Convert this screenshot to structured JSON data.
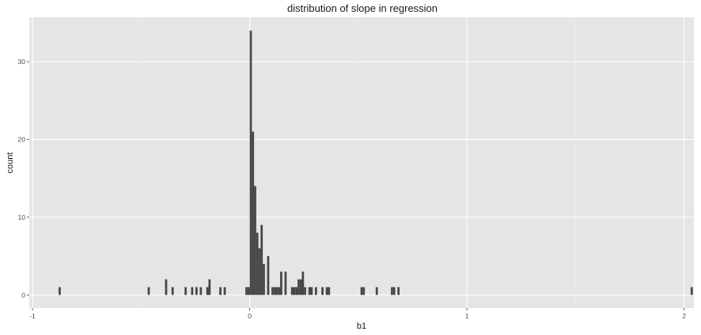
{
  "chart_data": {
    "type": "bar",
    "title": "distribution of slope in regression",
    "xlabel": "b1",
    "ylabel": "count",
    "xlim": [
      -1.015,
      2.045
    ],
    "ylim": [
      -1.7,
      35.7
    ],
    "x_ticks": [
      -1,
      0,
      1,
      2
    ],
    "x_tick_labels": [
      "-1",
      "0",
      "1",
      "2"
    ],
    "y_ticks": [
      0,
      10,
      20,
      30
    ],
    "y_tick_labels": [
      "0",
      "10",
      "20",
      "30"
    ],
    "grid": true,
    "legend": "none",
    "bin_width": 0.01,
    "bins": [
      {
        "x": -0.875,
        "count": 1
      },
      {
        "x": -0.465,
        "count": 1
      },
      {
        "x": -0.385,
        "count": 2
      },
      {
        "x": -0.355,
        "count": 1
      },
      {
        "x": -0.295,
        "count": 1
      },
      {
        "x": -0.265,
        "count": 1
      },
      {
        "x": -0.245,
        "count": 1
      },
      {
        "x": -0.225,
        "count": 1
      },
      {
        "x": -0.195,
        "count": 1
      },
      {
        "x": -0.185,
        "count": 2
      },
      {
        "x": -0.135,
        "count": 1
      },
      {
        "x": -0.115,
        "count": 1
      },
      {
        "x": -0.015,
        "count": 1
      },
      {
        "x": -0.005,
        "count": 1
      },
      {
        "x": 0.005,
        "count": 34
      },
      {
        "x": 0.015,
        "count": 21
      },
      {
        "x": 0.025,
        "count": 14
      },
      {
        "x": 0.035,
        "count": 8
      },
      {
        "x": 0.045,
        "count": 6
      },
      {
        "x": 0.055,
        "count": 9
      },
      {
        "x": 0.065,
        "count": 4
      },
      {
        "x": 0.085,
        "count": 5
      },
      {
        "x": 0.105,
        "count": 1
      },
      {
        "x": 0.115,
        "count": 1
      },
      {
        "x": 0.125,
        "count": 1
      },
      {
        "x": 0.135,
        "count": 1
      },
      {
        "x": 0.145,
        "count": 3
      },
      {
        "x": 0.165,
        "count": 3
      },
      {
        "x": 0.195,
        "count": 1
      },
      {
        "x": 0.205,
        "count": 1
      },
      {
        "x": 0.215,
        "count": 1
      },
      {
        "x": 0.225,
        "count": 2
      },
      {
        "x": 0.235,
        "count": 2
      },
      {
        "x": 0.245,
        "count": 3
      },
      {
        "x": 0.255,
        "count": 1
      },
      {
        "x": 0.275,
        "count": 1
      },
      {
        "x": 0.285,
        "count": 1
      },
      {
        "x": 0.305,
        "count": 1
      },
      {
        "x": 0.335,
        "count": 1
      },
      {
        "x": 0.355,
        "count": 1
      },
      {
        "x": 0.365,
        "count": 1
      },
      {
        "x": 0.515,
        "count": 1
      },
      {
        "x": 0.525,
        "count": 1
      },
      {
        "x": 0.585,
        "count": 1
      },
      {
        "x": 0.655,
        "count": 1
      },
      {
        "x": 0.665,
        "count": 1
      },
      {
        "x": 0.685,
        "count": 1
      },
      {
        "x": 2.035,
        "count": 1
      }
    ],
    "colors": {
      "panel": "#e5e5e5",
      "grid_major": "#ffffff",
      "grid_minor": "#f2f2f2",
      "bar": "#474747"
    }
  }
}
